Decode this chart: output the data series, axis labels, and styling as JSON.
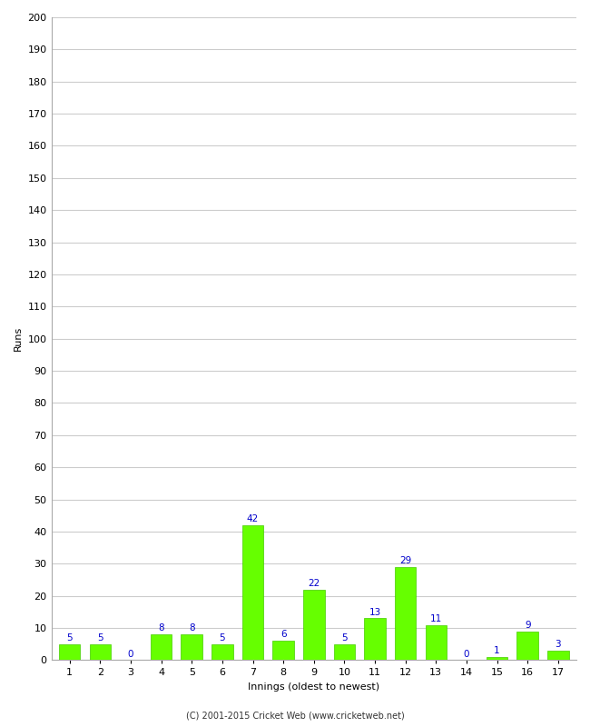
{
  "xlabel": "Innings (oldest to newest)",
  "ylabel": "Runs",
  "categories": [
    1,
    2,
    3,
    4,
    5,
    6,
    7,
    8,
    9,
    10,
    11,
    12,
    13,
    14,
    15,
    16,
    17
  ],
  "values": [
    5,
    5,
    0,
    8,
    8,
    5,
    42,
    6,
    22,
    5,
    13,
    29,
    11,
    0,
    1,
    9,
    3
  ],
  "bar_color": "#66ff00",
  "bar_edge_color": "#44cc00",
  "label_color": "#0000cc",
  "ylim": [
    0,
    200
  ],
  "yticks": [
    0,
    10,
    20,
    30,
    40,
    50,
    60,
    70,
    80,
    90,
    100,
    110,
    120,
    130,
    140,
    150,
    160,
    170,
    180,
    190,
    200
  ],
  "background_color": "#ffffff",
  "grid_color": "#cccccc",
  "footer": "(C) 2001-2015 Cricket Web (www.cricketweb.net)",
  "label_fontsize": 7.5,
  "axis_fontsize": 8,
  "ylabel_fontsize": 8
}
